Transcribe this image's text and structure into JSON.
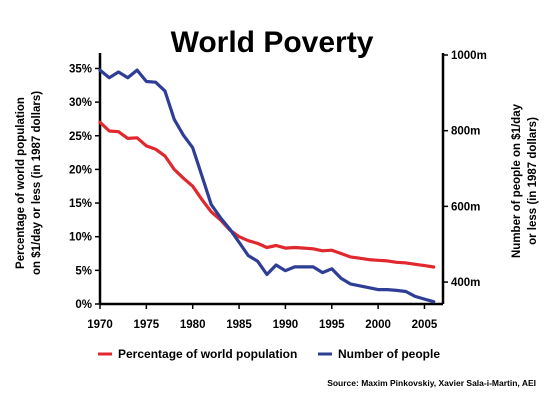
{
  "chart_data": {
    "type": "line",
    "title": "World Poverty",
    "ylabel_left": [
      "Percentage of world population",
      "on $1/day or less (in 1987 dollars)"
    ],
    "ylabel_right": [
      "Number of people on $1/day",
      "or less (in 1987 dollars)"
    ],
    "source": "Source: Maxim Pinkovskiy, Xavier Sala-i-Martin, AEI",
    "xlim": [
      1970,
      2007
    ],
    "ylim_left": [
      0,
      37
    ],
    "ylim_right": [
      342,
      1000
    ],
    "x_ticks": [
      1970,
      1975,
      1980,
      1985,
      1990,
      1995,
      2000,
      2005
    ],
    "left_ticks": [
      {
        "v": 0,
        "label": "0%"
      },
      {
        "v": 5,
        "label": "5%"
      },
      {
        "v": 10,
        "label": "10%"
      },
      {
        "v": 15,
        "label": "15%"
      },
      {
        "v": 20,
        "label": "20%"
      },
      {
        "v": 25,
        "label": "25%"
      },
      {
        "v": 30,
        "label": "30%"
      },
      {
        "v": 35,
        "label": "35%"
      }
    ],
    "right_ticks": [
      {
        "v": 400,
        "label": "400m"
      },
      {
        "v": 600,
        "label": "600m"
      },
      {
        "v": 800,
        "label": "800m"
      },
      {
        "v": 1000,
        "label": "1000m"
      }
    ],
    "legend_position": "bottom",
    "series": [
      {
        "name": "Percentage of world population",
        "axis": "left",
        "color": "#e0282e",
        "x": [
          1970,
          1971,
          1972,
          1973,
          1974,
          1975,
          1976,
          1977,
          1978,
          1979,
          1980,
          1981,
          1982,
          1983,
          1984,
          1985,
          1986,
          1987,
          1988,
          1989,
          1990,
          1991,
          1992,
          1993,
          1994,
          1995,
          1996,
          1997,
          1998,
          1999,
          2000,
          2001,
          2002,
          2003,
          2004,
          2005,
          2006
        ],
        "values": [
          27.0,
          25.7,
          25.6,
          24.6,
          24.7,
          23.5,
          23.0,
          22.0,
          20.0,
          18.7,
          17.5,
          15.5,
          13.7,
          12.5,
          11.0,
          10.0,
          9.4,
          9.0,
          8.4,
          8.7,
          8.3,
          8.4,
          8.3,
          8.2,
          7.9,
          8.0,
          7.5,
          7.0,
          6.8,
          6.6,
          6.5,
          6.4,
          6.2,
          6.1,
          5.9,
          5.7,
          5.5
        ]
      },
      {
        "name": "Number of people",
        "axis": "right",
        "color": "#2e3d96",
        "x": [
          1970,
          1971,
          1972,
          1973,
          1974,
          1975,
          1976,
          1977,
          1978,
          1979,
          1980,
          1981,
          1982,
          1983,
          1984,
          1985,
          1986,
          1987,
          1988,
          1989,
          1990,
          1991,
          1992,
          1993,
          1994,
          1995,
          1996,
          1997,
          1998,
          1999,
          2000,
          2001,
          2002,
          2003,
          2004,
          2005,
          2006
        ],
        "values": [
          960,
          940,
          955,
          940,
          960,
          930,
          928,
          905,
          830,
          788,
          755,
          680,
          605,
          570,
          540,
          505,
          470,
          455,
          420,
          445,
          430,
          440,
          440,
          440,
          425,
          435,
          410,
          395,
          390,
          385,
          380,
          380,
          378,
          375,
          362,
          355,
          348
        ]
      }
    ]
  }
}
